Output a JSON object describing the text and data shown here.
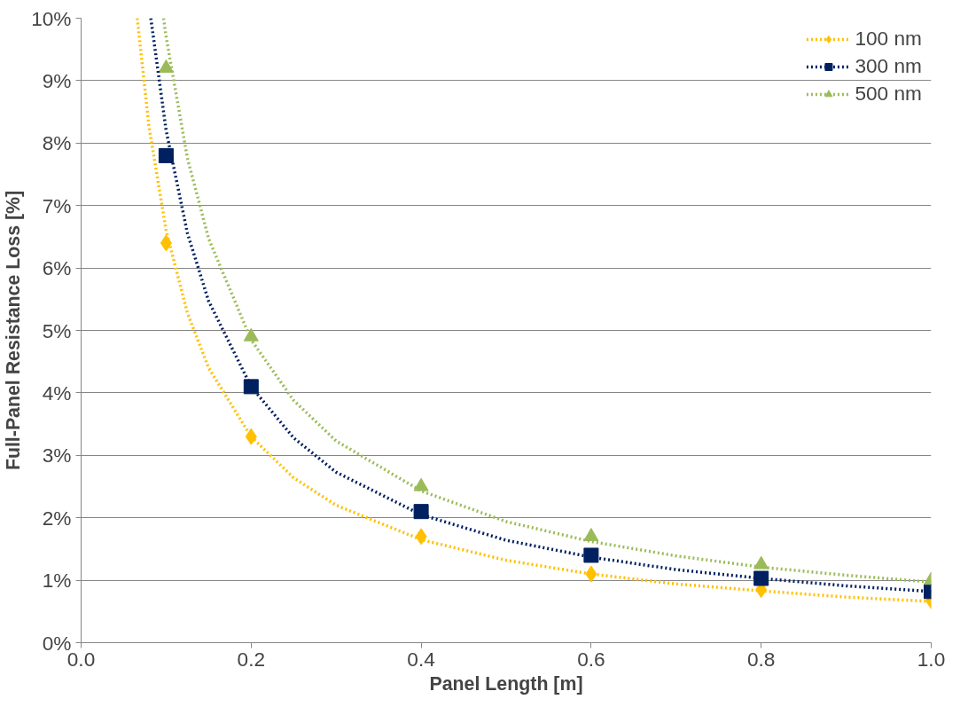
{
  "chart_data": {
    "type": "scatter",
    "xlabel": "Panel Length [m]",
    "ylabel": "Full-Panel Resistance Loss [%]",
    "xlim": [
      0,
      1
    ],
    "ylim": [
      0,
      10
    ],
    "xticks": [
      {
        "value": 0,
        "label": "0.0"
      },
      {
        "value": 0.2,
        "label": "0.2"
      },
      {
        "value": 0.4,
        "label": "0.4"
      },
      {
        "value": 0.6,
        "label": "0.6"
      },
      {
        "value": 0.8,
        "label": "0.8"
      },
      {
        "value": 1,
        "label": "1.0"
      }
    ],
    "yticks": [
      {
        "value": 0,
        "label": "0%"
      },
      {
        "value": 1,
        "label": "1%"
      },
      {
        "value": 2,
        "label": "2%"
      },
      {
        "value": 3,
        "label": "3%"
      },
      {
        "value": 4,
        "label": "4%"
      },
      {
        "value": 5,
        "label": "5%"
      },
      {
        "value": 6,
        "label": "6%"
      },
      {
        "value": 7,
        "label": "7%"
      },
      {
        "value": 8,
        "label": "8%"
      },
      {
        "value": 9,
        "label": "9%"
      },
      {
        "value": 10,
        "label": "10%"
      }
    ],
    "grid": "y",
    "legend": "top right",
    "series": [
      {
        "name": "100 nm",
        "marker": "diamond",
        "color": "#ffc000",
        "x": [
          0.1,
          0.2,
          0.4,
          0.6,
          0.8,
          1.0
        ],
        "values": [
          6.4,
          3.3,
          1.7,
          1.1,
          0.85,
          0.67
        ]
      },
      {
        "name": "300 nm",
        "marker": "square",
        "color": "#002060",
        "x": [
          0.1,
          0.2,
          0.4,
          0.6,
          0.8,
          1.0
        ],
        "values": [
          7.8,
          4.1,
          2.1,
          1.4,
          1.03,
          0.82
        ]
      },
      {
        "name": "500 nm",
        "marker": "triangle",
        "color": "#9bbb59",
        "x": [
          0.1,
          0.2,
          0.4,
          0.6,
          0.8,
          1.0
        ],
        "values": [
          9.2,
          4.9,
          2.5,
          1.7,
          1.25,
          1.0
        ]
      },
      {
        "type": "line",
        "line_style": "dotted",
        "color": "#ffc000",
        "x": [
          0.066,
          0.08,
          0.1,
          0.125,
          0.15,
          0.2,
          0.25,
          0.3,
          0.4,
          0.5,
          0.6,
          0.7,
          0.8,
          0.9,
          1.0
        ],
        "values": [
          10,
          8.25,
          6.6,
          5.28,
          4.4,
          3.3,
          2.64,
          2.2,
          1.65,
          1.32,
          1.1,
          0.94,
          0.83,
          0.73,
          0.66
        ]
      },
      {
        "type": "line",
        "line_style": "dotted",
        "color": "#002060",
        "x": [
          0.082,
          0.1,
          0.125,
          0.15,
          0.2,
          0.25,
          0.3,
          0.4,
          0.5,
          0.6,
          0.7,
          0.8,
          0.9,
          1.0
        ],
        "values": [
          10,
          8.2,
          6.56,
          5.47,
          4.1,
          3.28,
          2.73,
          2.05,
          1.64,
          1.37,
          1.17,
          1.03,
          0.91,
          0.82
        ]
      },
      {
        "type": "line",
        "line_style": "dotted",
        "color": "#9bbb59",
        "x": [
          0.097,
          0.1,
          0.125,
          0.15,
          0.2,
          0.25,
          0.3,
          0.4,
          0.5,
          0.6,
          0.7,
          0.8,
          0.9,
          1.0
        ],
        "values": [
          10,
          9.7,
          7.76,
          6.47,
          4.85,
          3.88,
          3.23,
          2.43,
          1.94,
          1.62,
          1.39,
          1.21,
          1.08,
          0.97
        ]
      }
    ]
  }
}
